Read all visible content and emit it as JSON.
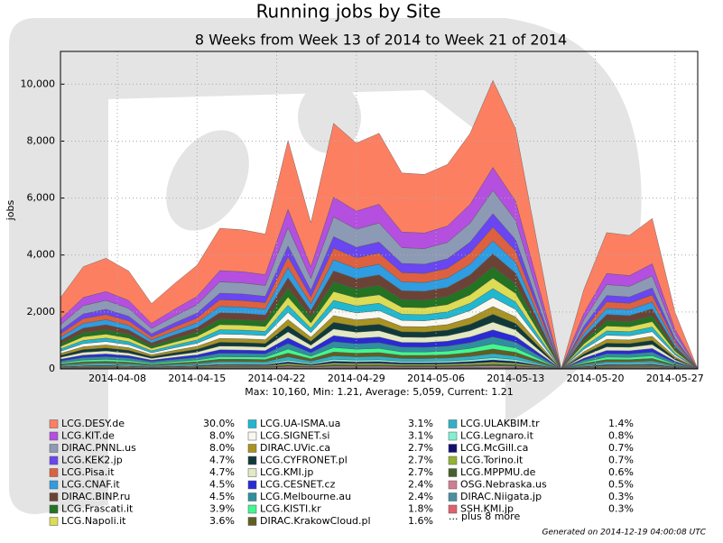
{
  "chart_data": {
    "type": "stacked-area",
    "title": "Running jobs by Site",
    "subtitle": "8 Weeks from Week 13 of 2014 to Week 21 of 2014",
    "ylabel": "jobs",
    "xlabel": "Max: 10,160, Min: 1.21, Average: 5,059, Current: 1.21",
    "footer": "Generated on 2014-12-19 04:00:08 UTC",
    "legend_more": "... plus 8 more",
    "grid": true,
    "x": [
      "2014-04-03",
      "2014-04-05",
      "2014-04-07",
      "2014-04-09",
      "2014-04-11",
      "2014-04-13",
      "2014-04-15",
      "2014-04-17",
      "2014-04-19",
      "2014-04-21",
      "2014-04-23",
      "2014-04-25",
      "2014-04-27",
      "2014-04-29",
      "2014-05-01",
      "2014-05-03",
      "2014-05-05",
      "2014-05-07",
      "2014-05-09",
      "2014-05-11",
      "2014-05-13",
      "2014-05-15",
      "2014-05-17",
      "2014-05-19",
      "2014-05-21",
      "2014-05-23",
      "2014-05-25",
      "2014-05-27",
      "2014-05-29"
    ],
    "xlim": [
      "2014-04-03",
      "2014-05-29"
    ],
    "xticks": [
      "2014-04-08",
      "2014-04-15",
      "2014-04-22",
      "2014-04-29",
      "2014-05-06",
      "2014-05-13",
      "2014-05-20",
      "2014-05-27"
    ],
    "ylim": [
      0,
      11150
    ],
    "yticks": [
      0,
      {
        "value": 2000,
        "label": "2,000"
      },
      {
        "value": 4000,
        "label": "4,000"
      },
      {
        "value": 6000,
        "label": "6,000"
      },
      {
        "value": 8000,
        "label": "8,000"
      },
      {
        "value": 10000,
        "label": "10,000"
      }
    ],
    "series": [
      {
        "name": "LCG.DESY.de",
        "share": "30.0%",
        "color": "#fd7f62",
        "values": [
          750,
          1080,
          1170,
          1035,
          690,
          900,
          1095,
          1485,
          1470,
          1425,
          2415,
          1545,
          2595,
          2385,
          2490,
          2070,
          2055,
          2160,
          2490,
          3048,
          2535,
          1260,
          0,
          840,
          1440,
          1410,
          1590,
          600,
          0
        ]
      },
      {
        "name": "LCG.KIT.de",
        "share": "8.0%",
        "color": "#b44fe0",
        "values": [
          200,
          288,
          312,
          276,
          184,
          240,
          292,
          396,
          392,
          380,
          644,
          412,
          692,
          636,
          664,
          552,
          548,
          576,
          664,
          813,
          676,
          336,
          0,
          224,
          384,
          376,
          424,
          160,
          0
        ]
      },
      {
        "name": "DIRAC.PNNL.us",
        "share": "8.0%",
        "color": "#8d9ab5",
        "values": [
          200,
          288,
          312,
          276,
          184,
          240,
          292,
          396,
          392,
          380,
          644,
          412,
          692,
          636,
          664,
          552,
          548,
          576,
          664,
          813,
          676,
          336,
          0,
          224,
          384,
          376,
          424,
          160,
          0
        ]
      },
      {
        "name": "LCG.KEK2.jp",
        "share": "4.7%",
        "color": "#6a45f2",
        "values": [
          118,
          169,
          183,
          162,
          108,
          141,
          172,
          233,
          230,
          223,
          378,
          242,
          407,
          374,
          390,
          324,
          322,
          338,
          390,
          478,
          397,
          197,
          0,
          132,
          226,
          221,
          249,
          94,
          0
        ]
      },
      {
        "name": "LCG.Pisa.it",
        "share": "4.7%",
        "color": "#dd6140",
        "values": [
          118,
          169,
          183,
          162,
          108,
          141,
          172,
          233,
          230,
          223,
          378,
          242,
          407,
          374,
          390,
          324,
          322,
          338,
          390,
          478,
          397,
          197,
          0,
          132,
          226,
          221,
          249,
          94,
          0
        ]
      },
      {
        "name": "LCG.CNAF.it",
        "share": "4.5%",
        "color": "#2e9de2",
        "values": [
          113,
          162,
          176,
          155,
          104,
          135,
          164,
          223,
          221,
          214,
          362,
          232,
          389,
          358,
          374,
          311,
          308,
          324,
          374,
          457,
          380,
          189,
          0,
          126,
          216,
          212,
          239,
          90,
          0
        ]
      },
      {
        "name": "DIRAC.BINP.ru",
        "share": "4.5%",
        "color": "#6b4336",
        "values": [
          113,
          162,
          176,
          155,
          104,
          135,
          164,
          223,
          221,
          214,
          362,
          232,
          389,
          358,
          374,
          311,
          308,
          324,
          374,
          457,
          380,
          189,
          0,
          126,
          216,
          212,
          239,
          90,
          0
        ]
      },
      {
        "name": "LCG.Frascati.it",
        "share": "3.9%",
        "color": "#227322",
        "values": [
          98,
          140,
          152,
          135,
          90,
          117,
          142,
          193,
          191,
          185,
          314,
          201,
          337,
          310,
          324,
          269,
          267,
          281,
          324,
          396,
          330,
          164,
          0,
          109,
          187,
          183,
          207,
          78,
          0
        ]
      },
      {
        "name": "LCG.Napoli.it",
        "share": "3.6%",
        "color": "#dcdc55",
        "values": [
          90,
          130,
          140,
          124,
          83,
          108,
          131,
          178,
          176,
          171,
          290,
          185,
          311,
          286,
          299,
          248,
          247,
          259,
          299,
          366,
          304,
          151,
          0,
          101,
          173,
          169,
          191,
          72,
          0
        ]
      },
      {
        "name": "LCG.UA-ISMA.ua",
        "share": "3.1%",
        "color": "#1fb8d0",
        "values": [
          78,
          112,
          121,
          107,
          71,
          93,
          113,
          153,
          152,
          147,
          250,
          160,
          268,
          246,
          257,
          214,
          212,
          223,
          257,
          315,
          262,
          130,
          0,
          87,
          149,
          146,
          164,
          62,
          0
        ]
      },
      {
        "name": "LCG.SIGNET.si",
        "share": "3.1%",
        "color": "#f8f8f0",
        "values": [
          78,
          112,
          121,
          107,
          71,
          93,
          113,
          153,
          152,
          147,
          250,
          160,
          268,
          246,
          257,
          214,
          212,
          223,
          257,
          315,
          262,
          130,
          0,
          87,
          149,
          146,
          164,
          62,
          0
        ]
      },
      {
        "name": "DIRAC.UVic.ca",
        "share": "2.7%",
        "color": "#a99320",
        "values": [
          68,
          97,
          105,
          93,
          62,
          81,
          99,
          134,
          132,
          128,
          217,
          139,
          234,
          215,
          224,
          186,
          185,
          194,
          224,
          274,
          228,
          113,
          0,
          76,
          130,
          127,
          143,
          54,
          0
        ]
      },
      {
        "name": "LCG.CYFRONET.pl",
        "share": "2.7%",
        "color": "#103a3a",
        "values": [
          68,
          97,
          105,
          93,
          62,
          81,
          99,
          134,
          132,
          128,
          217,
          139,
          234,
          215,
          224,
          186,
          185,
          194,
          224,
          274,
          228,
          113,
          0,
          76,
          130,
          127,
          143,
          54,
          0
        ]
      },
      {
        "name": "LCG.KMI.jp",
        "share": "2.7%",
        "color": "#e2e9c4",
        "values": [
          68,
          97,
          105,
          93,
          62,
          81,
          99,
          134,
          132,
          128,
          217,
          139,
          234,
          215,
          224,
          186,
          185,
          194,
          224,
          274,
          228,
          113,
          0,
          76,
          130,
          127,
          143,
          54,
          0
        ]
      },
      {
        "name": "LCG.CESNET.cz",
        "share": "2.4%",
        "color": "#2a2ad6",
        "values": [
          60,
          86,
          94,
          83,
          55,
          72,
          88,
          119,
          118,
          114,
          193,
          124,
          208,
          191,
          199,
          166,
          164,
          173,
          199,
          244,
          203,
          101,
          0,
          67,
          115,
          113,
          127,
          48,
          0
        ]
      },
      {
        "name": "LCG.Melbourne.au",
        "share": "2.4%",
        "color": "#2f8f9f",
        "values": [
          60,
          86,
          94,
          83,
          55,
          72,
          88,
          119,
          118,
          114,
          193,
          124,
          208,
          191,
          199,
          166,
          164,
          173,
          199,
          244,
          203,
          101,
          0,
          67,
          115,
          113,
          127,
          48,
          0
        ]
      },
      {
        "name": "LCG.KISTI.kr",
        "share": "1.8%",
        "color": "#3ff890",
        "values": [
          45,
          65,
          70,
          62,
          41,
          54,
          66,
          89,
          88,
          86,
          145,
          93,
          156,
          143,
          149,
          124,
          123,
          130,
          149,
          183,
          152,
          76,
          0,
          50,
          86,
          85,
          95,
          36,
          0
        ]
      },
      {
        "name": "DIRAC.KrakowCloud.pl",
        "share": "1.6%",
        "color": "#615e22",
        "values": [
          40,
          58,
          62,
          55,
          37,
          48,
          58,
          79,
          78,
          76,
          129,
          82,
          138,
          127,
          133,
          110,
          110,
          115,
          133,
          163,
          135,
          67,
          0,
          45,
          77,
          75,
          85,
          32,
          0
        ]
      },
      {
        "name": "LCG.ULAKBIM.tr",
        "share": "1.4%",
        "color": "#2eb2c8",
        "values": [
          35,
          50,
          55,
          48,
          32,
          42,
          51,
          69,
          69,
          67,
          113,
          72,
          121,
          111,
          116,
          97,
          96,
          101,
          116,
          142,
          118,
          59,
          0,
          39,
          67,
          66,
          74,
          28,
          0
        ]
      },
      {
        "name": "LCG.Legnaro.it",
        "share": "0.8%",
        "color": "#82f0d2",
        "values": [
          20,
          29,
          31,
          28,
          18,
          24,
          29,
          40,
          39,
          38,
          64,
          41,
          69,
          64,
          66,
          55,
          55,
          58,
          66,
          81,
          68,
          34,
          0,
          22,
          38,
          38,
          42,
          16,
          0
        ]
      },
      {
        "name": "LCG.McGill.ca",
        "share": "0.7%",
        "color": "#10106e",
        "values": [
          18,
          25,
          27,
          24,
          16,
          21,
          26,
          35,
          34,
          33,
          56,
          36,
          61,
          56,
          58,
          48,
          48,
          50,
          58,
          71,
          59,
          29,
          0,
          20,
          34,
          33,
          37,
          14,
          0
        ]
      },
      {
        "name": "LCG.Torino.it",
        "share": "0.7%",
        "color": "#92b232",
        "values": [
          18,
          25,
          27,
          24,
          16,
          21,
          26,
          35,
          34,
          33,
          56,
          36,
          61,
          56,
          58,
          48,
          48,
          50,
          58,
          71,
          59,
          29,
          0,
          20,
          34,
          33,
          37,
          14,
          0
        ]
      },
      {
        "name": "LCG.MPPMU.de",
        "share": "0.6%",
        "color": "#44622a",
        "values": [
          15,
          22,
          23,
          21,
          14,
          18,
          22,
          30,
          29,
          29,
          48,
          31,
          52,
          48,
          50,
          41,
          41,
          43,
          50,
          61,
          51,
          25,
          0,
          17,
          29,
          28,
          32,
          12,
          0
        ]
      },
      {
        "name": "OSG.Nebraska.us",
        "share": "0.5%",
        "color": "#d17e92",
        "values": [
          13,
          18,
          20,
          17,
          12,
          15,
          18,
          25,
          25,
          24,
          40,
          26,
          43,
          40,
          42,
          35,
          34,
          36,
          42,
          51,
          42,
          21,
          0,
          14,
          24,
          24,
          27,
          10,
          0
        ]
      },
      {
        "name": "DIRAC.Niigata.jp",
        "share": "0.3%",
        "color": "#4a8fa3",
        "values": [
          8,
          11,
          12,
          10,
          7,
          9,
          11,
          15,
          15,
          14,
          24,
          15,
          26,
          24,
          25,
          21,
          21,
          22,
          25,
          30,
          25,
          13,
          0,
          8,
          14,
          14,
          16,
          6,
          0
        ]
      },
      {
        "name": "SSH.KMI.jp",
        "share": "0.3%",
        "color": "#e1606e",
        "values": [
          8,
          11,
          12,
          10,
          7,
          9,
          11,
          15,
          15,
          14,
          24,
          15,
          26,
          24,
          25,
          21,
          21,
          22,
          25,
          30,
          25,
          13,
          0,
          8,
          14,
          14,
          16,
          6,
          0
        ]
      }
    ]
  }
}
